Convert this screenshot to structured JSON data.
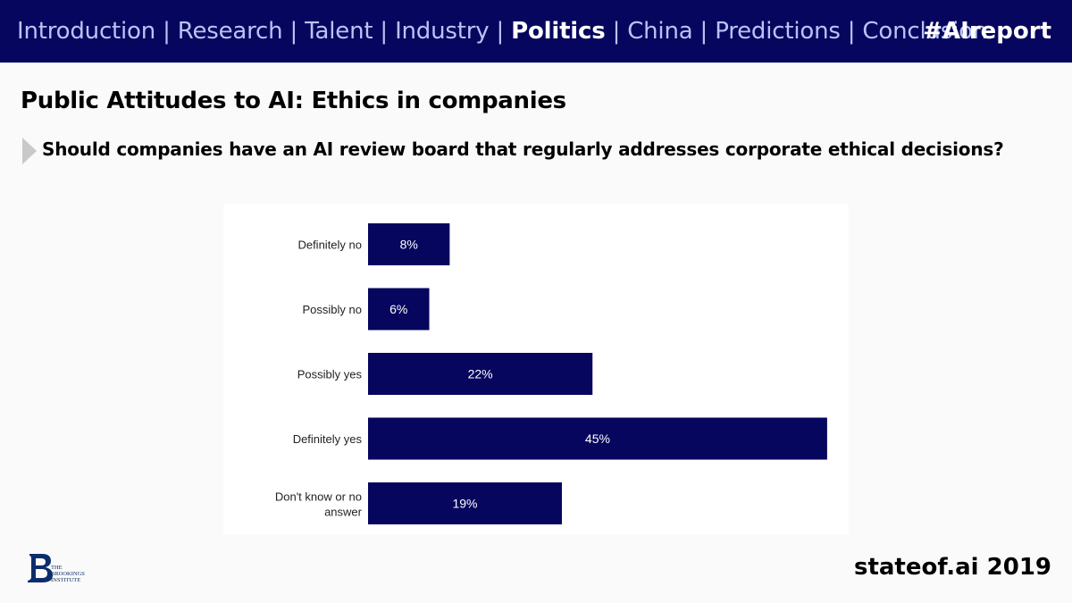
{
  "nav": {
    "items": [
      {
        "label": "Introduction",
        "active": false
      },
      {
        "label": "Research",
        "active": false
      },
      {
        "label": "Talent",
        "active": false
      },
      {
        "label": "Industry",
        "active": false
      },
      {
        "label": "Politics",
        "active": true
      },
      {
        "label": "China",
        "active": false
      },
      {
        "label": "Predictions",
        "active": false
      },
      {
        "label": "Conclusion",
        "active": false
      }
    ],
    "separator": "|",
    "hashtag": "#AIreport"
  },
  "slide": {
    "title": "Public Attitudes to AI: Ethics in companies",
    "question": "Should companies have an AI review board that regularly addresses corporate ethical decisions?"
  },
  "chart_data": {
    "type": "bar",
    "orientation": "horizontal",
    "categories": [
      "Definitely no",
      "Possibly no",
      "Possibly yes",
      "Definitely yes",
      "Don't know or no answer"
    ],
    "values": [
      8,
      6,
      22,
      45,
      19
    ],
    "value_labels": [
      "8%",
      "6%",
      "22%",
      "45%",
      "19%"
    ],
    "title": "",
    "xlabel": "",
    "ylabel": "",
    "xlim": [
      0,
      45
    ],
    "bar_color": "#06065e",
    "label_color": "#ffffff",
    "grid": false
  },
  "footer": {
    "logo": {
      "icon": "brookings-b-icon",
      "lines": [
        "THE",
        "BROOKINGS",
        "INSTITUTE"
      ]
    },
    "brand": "stateof.ai 2019"
  },
  "colors": {
    "header_bg": "#06065e",
    "nav_text": "#b9c3f4",
    "nav_active": "#ffffff",
    "bar": "#06065e"
  }
}
